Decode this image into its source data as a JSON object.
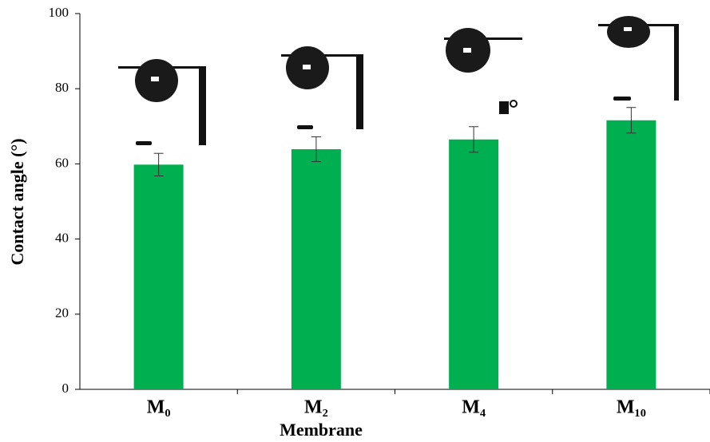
{
  "chart_data": {
    "type": "bar",
    "x_label": "Membrane",
    "y_label": "Contact angle (°)",
    "categories": [
      "M₀",
      "M₂",
      "M₄",
      "M₁₀"
    ],
    "values": [
      59.8,
      63.9,
      66.5,
      71.6
    ],
    "errors": [
      3.0,
      3.3,
      3.4,
      3.4
    ],
    "color": "#00b050",
    "ylim": [
      0,
      100
    ],
    "yticks": [
      0,
      20,
      40,
      60,
      80,
      100
    ]
  }
}
